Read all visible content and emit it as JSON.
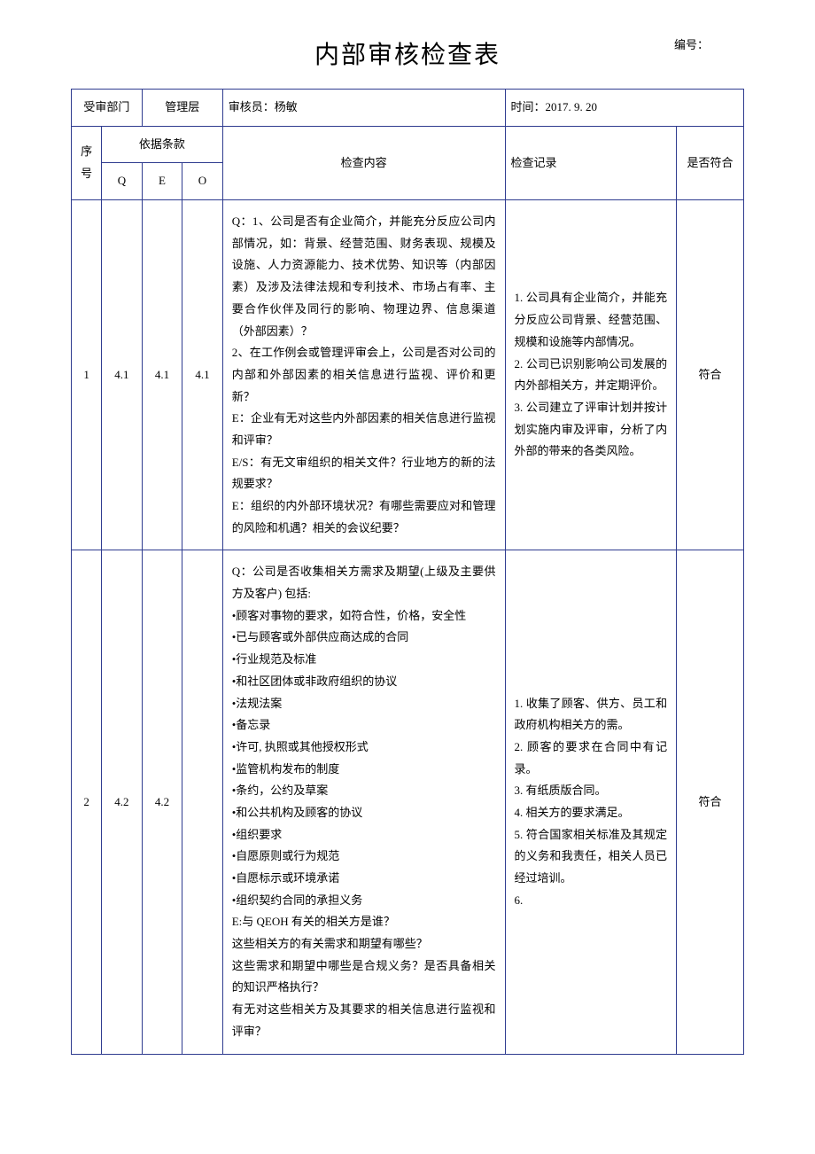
{
  "title": "内部审核检查表",
  "number_label": "编号：",
  "borderColor": "#2e3b8f",
  "header": {
    "dept_label": "受审部门",
    "dept_value": "管理层",
    "auditor_label": "审核员：",
    "auditor_value": "杨敏",
    "time_label": "时间：",
    "time_value": "2017. 9. 20"
  },
  "columns": {
    "seq": "序号",
    "basis": "依据条款",
    "Q": "Q",
    "E": "E",
    "O": "O",
    "content": "检查内容",
    "record": "检查记录",
    "conform": "是否符合"
  },
  "rows": [
    {
      "seq": "1",
      "Q": "4.1",
      "E": "4.1",
      "O": "4.1",
      "content": "Q：1、公司是否有企业简介，并能充分反应公司内部情况，如：背景、经营范围、财务表现、规模及设施、人力资源能力、技术优势、知识等（内部因素）及涉及法律法规和专利技术、市场占有率、主要合作伙伴及同行的影响、物理边界、信息渠道（外部因素）？\n2、在工作例会或管理评审会上，公司是否对公司的内部和外部因素的相关信息进行监视、评价和更新？\nE：企业有无对这些内外部因素的相关信息进行监视和评审？\nE/S：有无文审组织的相关文件？行业地方的新的法规要求？\nE：组织的内外部环境状况？有哪些需要应对和管理的风险和机遇？相关的会议纪要？",
      "record": "1. 公司具有企业简介，并能充分反应公司背景、经营范围、规模和设施等内部情况。\n2. 公司已识别影响公司发展的内外部相关方，并定期评价。\n3. 公司建立了评审计划并按计划实施内审及评审，分析了内外部的带来的各类风险。",
      "conform": "符合"
    },
    {
      "seq": "2",
      "Q": "4.2",
      "E": "4.2",
      "O": "",
      "content": "Q：公司是否收集相关方需求及期望(上级及主要供方及客户) 包括:\n•顾客对事物的要求，如符合性，价格，安全性\n•已与顾客或外部供应商达成的合同\n•行业规范及标准\n•和社区团体或非政府组织的协议\n•法规法案\n•备忘录\n•许可, 执照或其他授权形式\n•监管机构发布的制度\n•条约，公约及草案\n•和公共机构及顾客的协议\n•组织要求\n•自愿原则或行为规范\n•自愿标示或环境承诺\n•组织契约合同的承担义务\nE:与 QEOH 有关的相关方是谁？\n这些相关方的有关需求和期望有哪些？\n这些需求和期望中哪些是合规义务？是否具备相关的知识严格执行？\n有无对这些相关方及其要求的相关信息进行监视和评审？",
      "record": "1. 收集了顾客、供方、员工和政府机构相关方的需。\n2. 顾客的要求在合同中有记录。\n3. 有纸质版合同。\n4. 相关方的要求满足。\n5. 符合国家相关标准及其规定的义务和我责任，相关人员已经过培训。\n6.",
      "conform": "符合"
    }
  ]
}
